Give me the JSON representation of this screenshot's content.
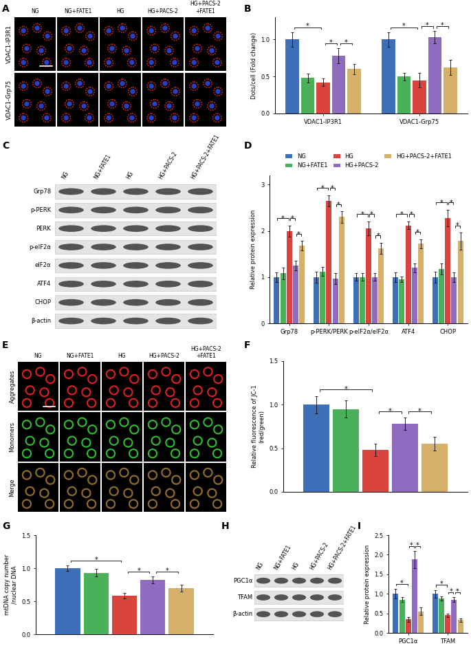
{
  "images": [
    {
      "panel": "A",
      "type": "pla",
      "columns": [
        "NG",
        "NG+FATE1",
        "HG",
        "HG+PACS-2",
        "HG+PACS-2\n+FATE1"
      ],
      "rows": [
        "VDAC1-IP3R1",
        "VDAC1-Grp75"
      ]
    },
    {
      "panel": "E",
      "type": "jc1",
      "columns": [
        "NG",
        "NG+FATE1",
        "HG",
        "HG+PACS-2",
        "HG+PACS-2\n+FATE1"
      ],
      "rows": [
        "Aggregates",
        "Monomers",
        "Merge"
      ]
    }
  ],
  "blots": [
    {
      "panel": "C",
      "columns": [
        "NG",
        "NG+FATE1",
        "HG",
        "HG+PACS-2",
        "HG+PACS-2+FATE1"
      ],
      "rows": [
        "Grp78",
        "p-PERK",
        "PERK",
        "p-eIF2α",
        "eIF2α",
        "ATF4",
        "CHOP",
        "β-actin"
      ]
    },
    {
      "panel": "H",
      "columns": [
        "NG",
        "NG+FATE1",
        "HG",
        "HG+PACS-2",
        "HG+PACS-2+FATE1"
      ],
      "rows": [
        "PGC1α",
        "TFAM",
        "β-actin"
      ]
    }
  ],
  "chart_data": [
    {
      "panel": "B",
      "type": "bar",
      "y_label": "Dots/cell (Fold change)",
      "categories": [
        "VDAC1-IP3R1",
        "VDAC1-Grp75"
      ],
      "series": [
        {
          "name": "NG",
          "color": "#3d6fb6",
          "values": [
            1.0,
            1.0
          ],
          "errors": [
            0.1,
            0.1
          ]
        },
        {
          "name": "NG+FATE1",
          "color": "#4bb05a",
          "values": [
            0.48,
            0.5
          ],
          "errors": [
            0.06,
            0.05
          ]
        },
        {
          "name": "HG",
          "color": "#d9443f",
          "values": [
            0.42,
            0.45
          ],
          "errors": [
            0.05,
            0.1
          ]
        },
        {
          "name": "HG+PACS-2",
          "color": "#8f6cc0",
          "values": [
            0.78,
            1.03
          ],
          "errors": [
            0.1,
            0.08
          ]
        },
        {
          "name": "HG+PACS-2+FATE1",
          "color": "#d4b06a",
          "values": [
            0.6,
            0.62
          ],
          "errors": [
            0.07,
            0.1
          ]
        }
      ],
      "ylim": [
        0,
        1.3
      ],
      "yticks": [
        {
          "value": 0,
          "label": "0.0"
        },
        {
          "value": 0.5,
          "label": "0.5"
        },
        {
          "value": 1,
          "label": "1.0"
        }
      ],
      "significance": [
        {
          "category": 0,
          "from": 0,
          "to": 2,
          "label": "*"
        },
        {
          "category": 0,
          "from": 2,
          "to": 3,
          "label": "*"
        },
        {
          "category": 0,
          "from": 3,
          "to": 4,
          "label": "*"
        },
        {
          "category": 1,
          "from": 0,
          "to": 2,
          "label": "*"
        },
        {
          "category": 1,
          "from": 2,
          "to": 3,
          "label": "*"
        },
        {
          "category": 1,
          "from": 3,
          "to": 4,
          "label": "*"
        }
      ]
    },
    {
      "panel": "D",
      "type": "bar",
      "y_label": "Relative protein expression",
      "legend": "top",
      "categories": [
        "Grp78",
        "p-PERK/PERK",
        "p-eIF2α/eIF2α",
        "ATF4",
        "CHOP"
      ],
      "series": [
        {
          "name": "NG",
          "color": "#3d6fb6",
          "values": [
            1.0,
            1.0,
            1.0,
            1.0,
            1.0
          ],
          "errors": [
            0.1,
            0.12,
            0.08,
            0.1,
            0.12
          ]
        },
        {
          "name": "NG+FATE1",
          "color": "#4bb05a",
          "values": [
            1.08,
            1.12,
            1.0,
            0.95,
            1.18
          ],
          "errors": [
            0.12,
            0.1,
            0.08,
            0.06,
            0.12
          ]
        },
        {
          "name": "HG",
          "color": "#d9443f",
          "values": [
            2.0,
            2.65,
            2.05,
            2.12,
            2.28
          ],
          "errors": [
            0.12,
            0.12,
            0.15,
            0.08,
            0.18
          ]
        },
        {
          "name": "HG+PACS-2",
          "color": "#8f6cc0",
          "values": [
            1.25,
            0.97,
            1.0,
            1.2,
            1.0
          ],
          "errors": [
            0.1,
            0.12,
            0.08,
            0.1,
            0.1
          ]
        },
        {
          "name": "HG+PACS-2+FATE1",
          "color": "#d4b06a",
          "values": [
            1.68,
            2.3,
            1.62,
            1.72,
            1.78
          ],
          "errors": [
            0.1,
            0.12,
            0.12,
            0.1,
            0.18
          ]
        }
      ],
      "ylim": [
        0,
        3.2
      ],
      "yticks": [
        0,
        1,
        2,
        3
      ],
      "significance": [
        {
          "category": 0,
          "from": 0,
          "to": 2,
          "label": "*"
        },
        {
          "category": 0,
          "from": 2,
          "to": 3,
          "label": "*"
        },
        {
          "category": 0,
          "from": 3,
          "to": 4,
          "label": "*"
        },
        {
          "category": 1,
          "from": 0,
          "to": 2,
          "label": "*"
        },
        {
          "category": 1,
          "from": 2,
          "to": 3,
          "label": "*"
        },
        {
          "category": 1,
          "from": 3,
          "to": 4,
          "label": "*"
        },
        {
          "category": 2,
          "from": 0,
          "to": 2,
          "label": "*"
        },
        {
          "category": 2,
          "from": 2,
          "to": 3,
          "label": "*"
        },
        {
          "category": 2,
          "from": 3,
          "to": 4,
          "label": "*"
        },
        {
          "category": 3,
          "from": 0,
          "to": 2,
          "label": "*"
        },
        {
          "category": 3,
          "from": 2,
          "to": 3,
          "label": "*"
        },
        {
          "category": 3,
          "from": 3,
          "to": 4,
          "label": "*"
        },
        {
          "category": 4,
          "from": 0,
          "to": 2,
          "label": "*"
        },
        {
          "category": 4,
          "from": 2,
          "to": 3,
          "label": "*"
        },
        {
          "category": 4,
          "from": 3,
          "to": 4,
          "label": "*"
        }
      ]
    },
    {
      "panel": "F",
      "type": "bar",
      "y_label": "Relative fluorescence of JC-1\n(red/green)",
      "categories": [
        null
      ],
      "series": [
        {
          "name": "NG",
          "color": "#3d6fb6",
          "values": [
            1.0
          ],
          "errors": [
            0.1
          ]
        },
        {
          "name": "NG+FATE1",
          "color": "#4bb05a",
          "values": [
            0.95
          ],
          "errors": [
            0.1
          ]
        },
        {
          "name": "HG",
          "color": "#d9443f",
          "values": [
            0.48
          ],
          "errors": [
            0.07
          ]
        },
        {
          "name": "HG+PACS-2",
          "color": "#8f6cc0",
          "values": [
            0.78
          ],
          "errors": [
            0.07
          ]
        },
        {
          "name": "HG+PACS-2+FATE1",
          "color": "#d4b06a",
          "values": [
            0.55
          ],
          "errors": [
            0.08
          ]
        }
      ],
      "ylim": [
        0,
        1.5
      ],
      "yticks": [
        {
          "value": 0,
          "label": "0.0"
        },
        {
          "value": 0.5,
          "label": "0.5"
        },
        {
          "value": 1,
          "label": "1.0"
        },
        {
          "value": 1.5,
          "label": "1.5"
        }
      ],
      "significance": [
        {
          "category": 0,
          "from": 0,
          "to": 2,
          "label": "*"
        },
        {
          "category": 0,
          "from": 2,
          "to": 3,
          "label": "*"
        },
        {
          "category": 0,
          "from": 3,
          "to": 4,
          "label": "*"
        }
      ]
    },
    {
      "panel": "G",
      "type": "bar",
      "y_label": "mtDNA copy number\n/nuclear DNA",
      "categories": [
        null
      ],
      "series": [
        {
          "name": "NG",
          "color": "#3d6fb6",
          "values": [
            1.0
          ],
          "errors": [
            0.04
          ]
        },
        {
          "name": "NG+FATE1",
          "color": "#4bb05a",
          "values": [
            0.93
          ],
          "errors": [
            0.06
          ]
        },
        {
          "name": "HG",
          "color": "#d9443f",
          "values": [
            0.58
          ],
          "errors": [
            0.04
          ]
        },
        {
          "name": "HG+PACS-2",
          "color": "#8f6cc0",
          "values": [
            0.82
          ],
          "errors": [
            0.05
          ]
        },
        {
          "name": "HG+PACS-2+FATE1",
          "color": "#d4b06a",
          "values": [
            0.7
          ],
          "errors": [
            0.05
          ]
        }
      ],
      "ylim": [
        0,
        1.5
      ],
      "yticks": [
        {
          "value": 0,
          "label": "0.0"
        },
        {
          "value": 0.5,
          "label": "0.5"
        },
        {
          "value": 1,
          "label": "1.0"
        },
        {
          "value": 1.5,
          "label": "1.5"
        }
      ],
      "significance": [
        {
          "category": 0,
          "from": 0,
          "to": 2,
          "label": "*"
        },
        {
          "category": 0,
          "from": 2,
          "to": 3,
          "label": "*"
        },
        {
          "category": 0,
          "from": 3,
          "to": 4,
          "label": "*"
        }
      ]
    },
    {
      "panel": "I",
      "type": "bar",
      "y_label": "Relative protein expression",
      "categories": [
        "PGC1α",
        "TFAM"
      ],
      "series": [
        {
          "name": "NG",
          "color": "#3d6fb6",
          "values": [
            1.0,
            1.0
          ],
          "errors": [
            0.12,
            0.1
          ]
        },
        {
          "name": "NG+FATE1",
          "color": "#4bb05a",
          "values": [
            0.85,
            0.88
          ],
          "errors": [
            0.06,
            0.05
          ]
        },
        {
          "name": "HG",
          "color": "#d9443f",
          "values": [
            0.35,
            0.45
          ],
          "errors": [
            0.06,
            0.04
          ]
        },
        {
          "name": "HG+PACS-2",
          "color": "#8f6cc0",
          "values": [
            1.88,
            0.85
          ],
          "errors": [
            0.22,
            0.06
          ]
        },
        {
          "name": "HG+PACS-2+FATE1",
          "color": "#d4b06a",
          "values": [
            0.55,
            0.33
          ],
          "errors": [
            0.1,
            0.04
          ]
        }
      ],
      "ylim": [
        0,
        2.5
      ],
      "yticks": [
        {
          "value": 0,
          "label": "0.0"
        },
        {
          "value": 0.5,
          "label": "0.5"
        },
        {
          "value": 1,
          "label": "1.0"
        },
        {
          "value": 1.5,
          "label": "1.5"
        },
        {
          "value": 2,
          "label": "2.0"
        },
        {
          "value": 2.5,
          "label": "2.5"
        }
      ],
      "significance": [
        {
          "category": 0,
          "from": 0,
          "to": 2,
          "label": "*"
        },
        {
          "category": 0,
          "from": 2,
          "to": 3,
          "label": "*"
        },
        {
          "category": 0,
          "from": 3,
          "to": 4,
          "label": "*"
        },
        {
          "category": 1,
          "from": 0,
          "to": 2,
          "label": "*"
        },
        {
          "category": 1,
          "from": 2,
          "to": 3,
          "label": "*"
        },
        {
          "category": 1,
          "from": 3,
          "to": 4,
          "label": "*"
        }
      ]
    }
  ]
}
